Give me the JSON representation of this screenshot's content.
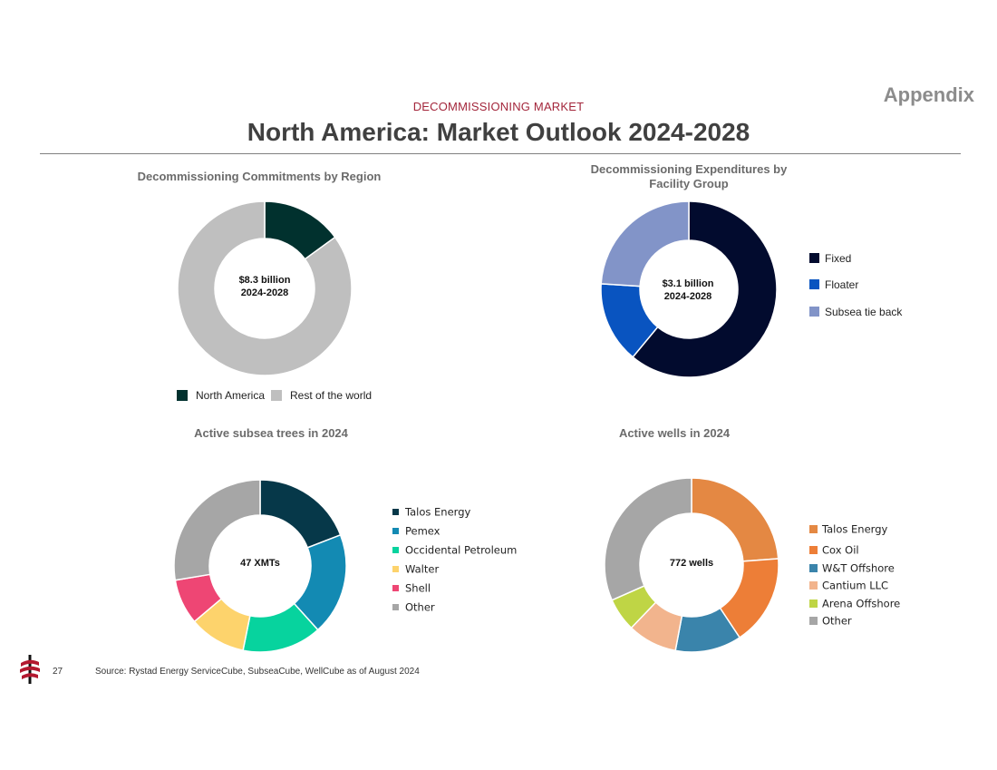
{
  "header": {
    "appendix": "Appendix",
    "kicker": "DECOMMISSIONING MARKET",
    "title": "North America: Market Outlook 2024-2028"
  },
  "footer": {
    "page_number": "27",
    "source": "Source:  Rystad Energy ServiceCube, SubseaCube, WellCube as of August 2024",
    "logo": "company-logo-icon"
  },
  "colors": {
    "kicker": "#a3263b",
    "title": "#404040"
  },
  "chart_data": [
    {
      "type": "pie",
      "variant": "donut",
      "title": "Decommissioning Commitments by Region",
      "center_label_line1": "$8.3 billion",
      "center_label_line2": "2024-2028",
      "legend_position": "bottom",
      "series": [
        {
          "name": "North America",
          "value": 15,
          "color": "#01312e"
        },
        {
          "name": "Rest of the world",
          "value": 85,
          "color": "#bfbfbf"
        }
      ]
    },
    {
      "type": "pie",
      "variant": "donut",
      "title_line1": "Decommissioning Expenditures by",
      "title_line2": "Facility Group",
      "center_label_line1": "$3.1 billion",
      "center_label_line2": "2024-2028",
      "legend_position": "right",
      "series": [
        {
          "name": "Fixed",
          "value": 61,
          "color": "#020b2e"
        },
        {
          "name": "Floater",
          "value": 15,
          "color": "#0954c0"
        },
        {
          "name": "Subsea tie back",
          "value": 24,
          "color": "#8294c8"
        }
      ]
    },
    {
      "type": "pie",
      "variant": "donut",
      "title": "Active subsea trees in 2024",
      "center_label": "47 XMTs",
      "legend_position": "right",
      "series": [
        {
          "name": "Talos Energy",
          "value": 9,
          "color": "#063849"
        },
        {
          "name": "Pemex",
          "value": 9,
          "color": "#138ab3"
        },
        {
          "name": "Occidental Petroleum",
          "value": 7,
          "color": "#07d39e"
        },
        {
          "name": "Walter",
          "value": 5,
          "color": "#fdd36c"
        },
        {
          "name": "Shell",
          "value": 4,
          "color": "#ee4674"
        },
        {
          "name": "Other",
          "value": 13,
          "color": "#a6a6a6"
        }
      ]
    },
    {
      "type": "pie",
      "variant": "donut",
      "title": "Active wells in 2024",
      "center_label": "772 wells",
      "legend_position": "right",
      "series": [
        {
          "name": "Talos Energy",
          "value": 184,
          "color": "#e48843"
        },
        {
          "name": "Cox Oil",
          "value": 130,
          "color": "#ed7e37"
        },
        {
          "name": "W&T Offshore",
          "value": 95,
          "color": "#3a84ab"
        },
        {
          "name": "Cantium LLC",
          "value": 71,
          "color": "#f2b48d"
        },
        {
          "name": "Arena Offshore",
          "value": 48,
          "color": "#bfd545"
        },
        {
          "name": "Other",
          "value": 244,
          "color": "#a6a6a6"
        }
      ]
    }
  ]
}
